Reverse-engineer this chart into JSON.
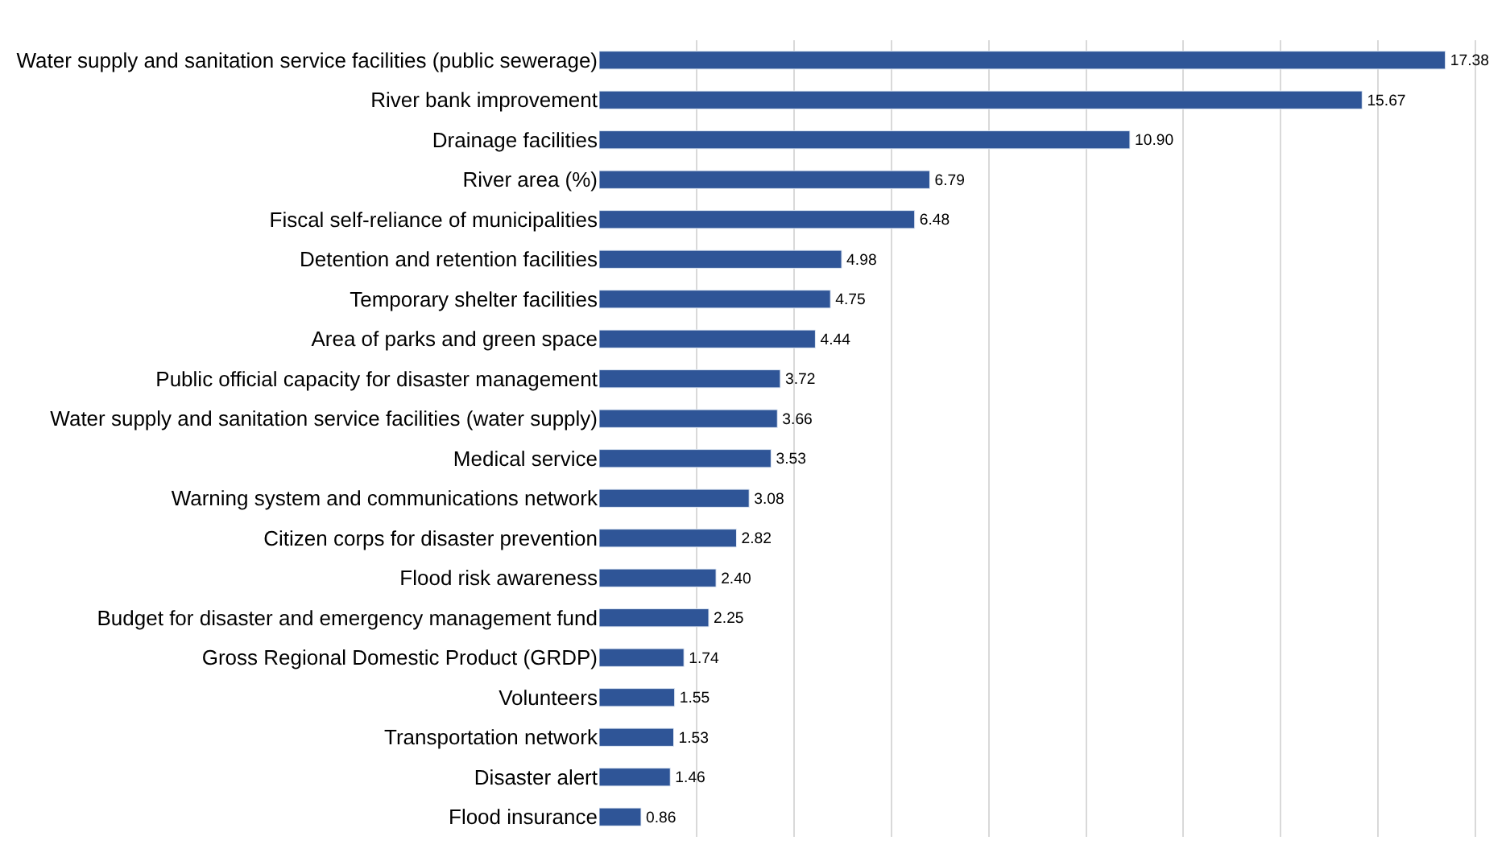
{
  "chart_data": {
    "type": "bar",
    "orientation": "horizontal",
    "categories": [
      "Water supply and sanitation service facilities (public sewerage)",
      "River bank improvement",
      "Drainage facilities",
      "River area (%)",
      "Fiscal self-reliance of municipalities",
      "Detention and retention facilities",
      "Temporary shelter facilities",
      "Area of parks and green space",
      "Public official capacity for disaster management",
      "Water supply and sanitation service facilities (water supply)",
      "Medical service",
      "Warning system and communications network",
      "Citizen corps for disaster prevention",
      "Flood risk awareness",
      "Budget for disaster and emergency management fund",
      "Gross Regional Domestic Product (GRDP)",
      "Volunteers",
      "Transportation network",
      "Disaster alert",
      "Flood insurance"
    ],
    "values": [
      17.38,
      15.67,
      10.9,
      6.79,
      6.48,
      4.98,
      4.75,
      4.44,
      3.72,
      3.66,
      3.53,
      3.08,
      2.82,
      2.4,
      2.25,
      1.74,
      1.55,
      1.53,
      1.46,
      0.86
    ],
    "value_labels": [
      "17.38",
      "15.67",
      "10.90",
      "6.79",
      "6.48",
      "4.98",
      "4.75",
      "4.44",
      "3.72",
      "3.66",
      "3.53",
      "3.08",
      "2.82",
      "2.40",
      "2.25",
      "1.74",
      "1.55",
      "1.53",
      "1.46",
      "0.86"
    ],
    "color": "#2f5597",
    "grid": "x",
    "tick_labels": "y"
  }
}
